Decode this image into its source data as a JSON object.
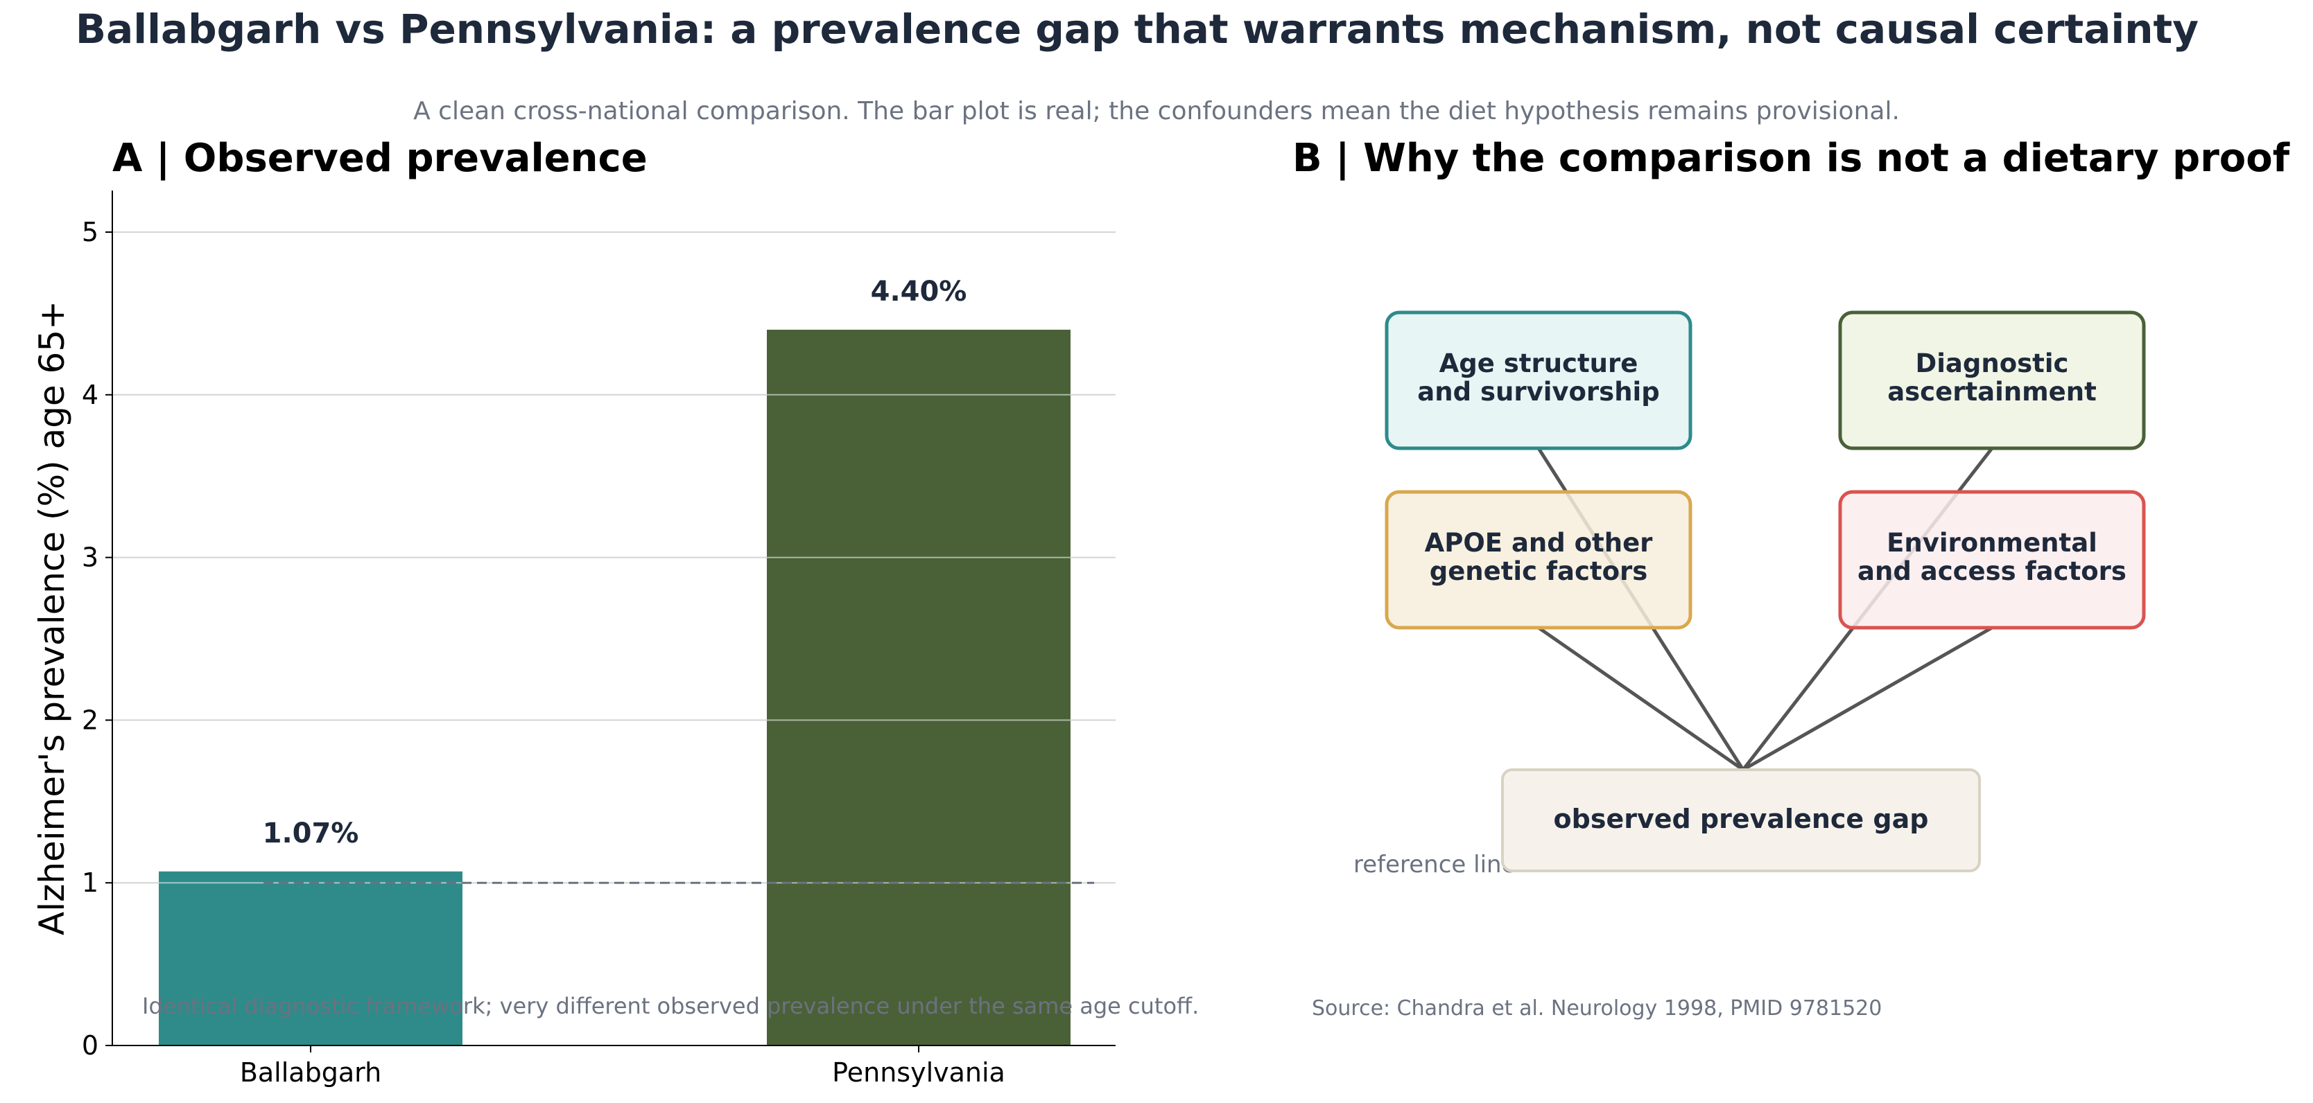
{
  "title": "Ballabgarh vs Pennsylvania: a prevalence gap that warrants mechanism, not causal certainty",
  "subtitle": "A clean cross-national comparison. The bar plot is real; the confounders mean the diet hypothesis remains provisional.",
  "chart_data": {
    "type": "bar",
    "panel_title": "A  |  Observed prevalence",
    "categories": [
      "Ballabgarh",
      "Pennsylvania"
    ],
    "values": [
      1.07,
      4.4
    ],
    "value_labels": [
      "1.07%",
      "4.40%"
    ],
    "ylabel": "Alzheimer's prevalence (%) age 65+",
    "ylim": [
      0,
      5.25
    ],
    "yticks": [
      "0",
      "1",
      "2",
      "3",
      "4",
      "5"
    ],
    "reference_line": 1.0,
    "grid": true,
    "colors": [
      "#2e8b8a",
      "#4a6137"
    ],
    "note": "Identical diagnostic framework; very different observed prevalence under the same age cutoff."
  },
  "diagram": {
    "panel_title": "B  |  Why the comparison is not a dietary proof",
    "boxes": [
      {
        "id": "age",
        "lines": [
          "Age structure",
          "and survivorship"
        ],
        "stroke": "#2e8b8a",
        "fill": "#e3f3f2"
      },
      {
        "id": "diag",
        "lines": [
          "Diagnostic",
          "ascertainment"
        ],
        "stroke": "#4a6137",
        "fill": "#eef3e2"
      },
      {
        "id": "apoe",
        "lines": [
          "APOE and other",
          "genetic factors"
        ],
        "stroke": "#d9a84e",
        "fill": "#f7efdc"
      },
      {
        "id": "env",
        "lines": [
          "Environmental",
          "and access factors"
        ],
        "stroke": "#d9534f",
        "fill": "#fbeced"
      }
    ],
    "center": {
      "label": "observed prevalence gap",
      "stroke": "#d9d2c3",
      "fill": "#f6f2eb"
    },
    "reference_text": "reference line",
    "source": "Source: Chandra et al. Neurology 1998, PMID 9781520"
  }
}
